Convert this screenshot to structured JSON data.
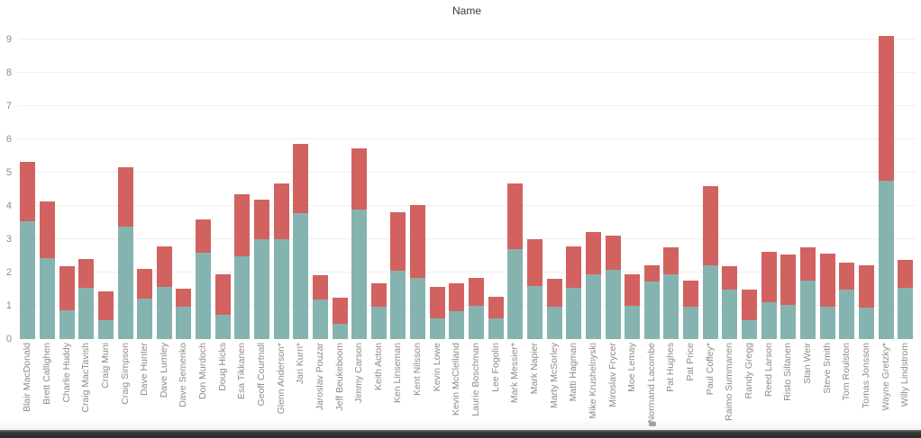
{
  "colors": {
    "background": "#ffffff",
    "gridline": "#efefef",
    "axis_text": "#8c8c8c",
    "title_text": "#3c3c3c",
    "bottom_segment": "#85b4b0",
    "top_segment": "#d2625f",
    "taskbar": "#333333"
  },
  "chart_data": {
    "type": "bar",
    "stacked": true,
    "title": "Name",
    "xlabel": "",
    "ylabel": "",
    "ylim": [
      0,
      9.5
    ],
    "yticks": [
      0,
      1,
      2,
      3,
      4,
      5,
      6,
      7,
      8,
      9
    ],
    "grid": "horizontal",
    "legend": "none",
    "x_label_rotation": "vertical-bottom-to-top",
    "categories": [
      "Blair MacDonald",
      "Brett Callighen",
      "Charlie Huddy",
      "Craig MacTavish",
      "Craig Muni",
      "Craig Simpson",
      "Dave Hunter",
      "Dave Lumley",
      "Dave Semenko",
      "Don Murdoch",
      "Doug Hicks",
      "Esa Tikkanen",
      "Geoff Courtnall",
      "Glenn Anderson*",
      "Jari Kurri*",
      "Jaroslav Pouzar",
      "Jeff Beukeboom",
      "Jimmy Carson",
      "Keith Acton",
      "Ken Linseman",
      "Kent Nilsson",
      "Kevin Lowe",
      "Kevin McClelland",
      "Laurie Boschman",
      "Lee Fogolin",
      "Mark Messier*",
      "Mark Napier",
      "Marty McSorley",
      "Matti Hagman",
      "Mike Krushelnyski",
      "Miroslav Frycer",
      "Moe Lemay",
      "Normand Lacombe",
      "Pat Hughes",
      "Pat Price",
      "Paul Coffey*",
      "Raimo Summanen",
      "Randy Gregg",
      "Reed Larson",
      "Risto Siltanen",
      "Stan Weir",
      "Steve Smith",
      "Tom Roulston",
      "Tomas Jonsson",
      "Wayne Gretzky*",
      "Willy Lindstrom"
    ],
    "series": [
      {
        "name": "bottom-segment",
        "color": "#85b4b0",
        "values": [
          3.55,
          2.43,
          0.88,
          1.55,
          0.58,
          3.39,
          1.23,
          1.58,
          0.97,
          2.59,
          0.74,
          2.49,
          3.0,
          3.0,
          3.8,
          1.19,
          0.46,
          3.9,
          0.98,
          2.05,
          1.83,
          0.61,
          0.83,
          0.99,
          0.61,
          2.72,
          1.6,
          0.97,
          1.53,
          1.94,
          2.08,
          1.01,
          1.73,
          1.94,
          0.97,
          2.22,
          1.49,
          0.56,
          1.1,
          1.04,
          1.76,
          0.98,
          1.48,
          0.95,
          4.77,
          1.53
        ]
      },
      {
        "name": "top-segment",
        "color": "#d2625f",
        "values": [
          1.78,
          1.71,
          1.3,
          0.85,
          0.85,
          1.78,
          0.87,
          1.21,
          0.54,
          1.01,
          1.2,
          1.87,
          1.2,
          1.69,
          2.07,
          0.72,
          0.79,
          1.85,
          0.69,
          1.77,
          2.2,
          0.97,
          0.85,
          0.86,
          0.67,
          1.96,
          1.41,
          0.85,
          1.26,
          1.27,
          1.02,
          0.94,
          0.49,
          0.82,
          0.79,
          2.37,
          0.69,
          0.94,
          1.53,
          1.5,
          1.0,
          1.59,
          0.83,
          1.27,
          4.34,
          0.86
        ]
      }
    ]
  }
}
